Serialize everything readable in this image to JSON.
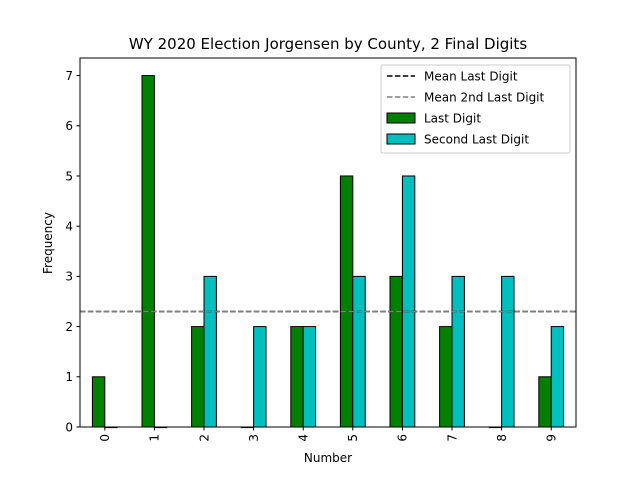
{
  "chart_data": {
    "type": "bar",
    "title": "WY 2020 Election Jorgensen by County, 2 Final Digits",
    "xlabel": "Number",
    "ylabel": "Frequency",
    "categories": [
      "0",
      "1",
      "2",
      "3",
      "4",
      "5",
      "6",
      "7",
      "8",
      "9"
    ],
    "series": [
      {
        "name": "Last Digit",
        "values": [
          1,
          7,
          2,
          0,
          2,
          5,
          3,
          2,
          0,
          1
        ],
        "color": "#008000"
      },
      {
        "name": "Second Last Digit",
        "values": [
          0,
          0,
          3,
          2,
          2,
          3,
          5,
          3,
          3,
          2
        ],
        "color": "#00bfbf"
      }
    ],
    "reference_lines": [
      {
        "name": "Mean Last Digit",
        "value": 2.3,
        "color": "#000000",
        "style": "dashed"
      },
      {
        "name": "Mean 2nd Last Digit",
        "value": 2.3,
        "color": "#808080",
        "style": "dashed"
      }
    ],
    "ylim": [
      0,
      7.35
    ],
    "yticks": [
      0,
      1,
      2,
      3,
      4,
      5,
      6,
      7
    ],
    "legend_position": "top-right",
    "grid": false
  }
}
